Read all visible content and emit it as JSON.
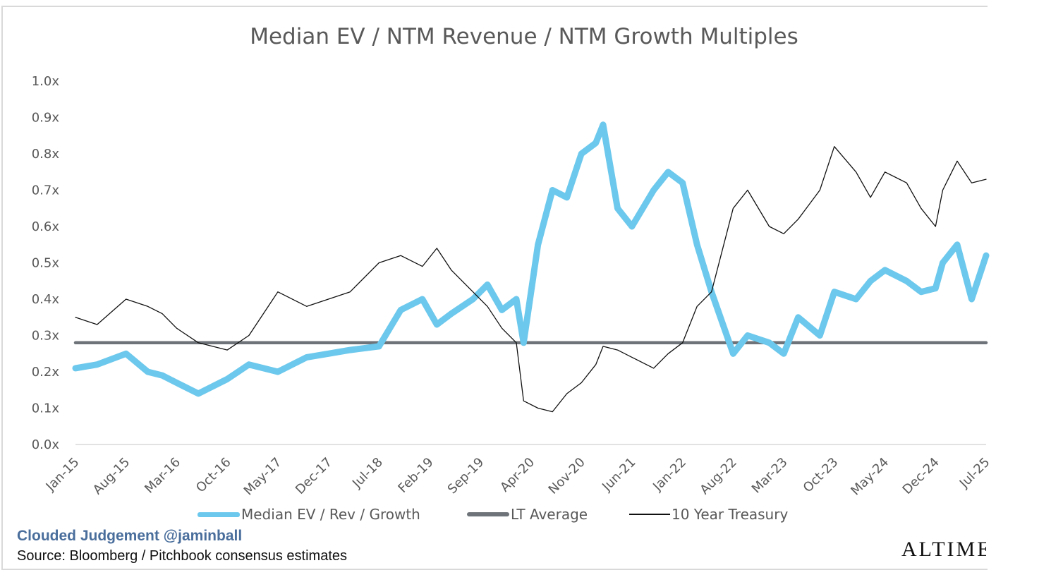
{
  "chart_data": {
    "type": "line",
    "title": "Median EV / NTM Revenue / NTM Growth Multiples",
    "xlabel": "",
    "ylabel": "",
    "ylim": [
      0,
      1.0
    ],
    "y_ticks": [
      "0.0x",
      "0.1x",
      "0.2x",
      "0.3x",
      "0.4x",
      "0.5x",
      "0.6x",
      "0.7x",
      "0.8x",
      "0.9x",
      "1.0x"
    ],
    "x_ticks": [
      "Jan-15",
      "Aug-15",
      "Mar-16",
      "Oct-16",
      "May-17",
      "Dec-17",
      "Jul-18",
      "Feb-19",
      "Sep-19",
      "Apr-20",
      "Nov-20",
      "Jun-21",
      "Jan-22",
      "Aug-22",
      "Mar-23",
      "Oct-23",
      "May-24",
      "Dec-24",
      "Jul-25"
    ],
    "grid": false,
    "legend_position": "bottom",
    "x": [
      "2015-01",
      "2015-04",
      "2015-08",
      "2015-11",
      "2016-01",
      "2016-03",
      "2016-06",
      "2016-10",
      "2017-01",
      "2017-05",
      "2017-09",
      "2017-12",
      "2018-03",
      "2018-07",
      "2018-10",
      "2019-01",
      "2019-03",
      "2019-05",
      "2019-08",
      "2019-10",
      "2019-12",
      "2020-02",
      "2020-03",
      "2020-05",
      "2020-07",
      "2020-09",
      "2020-11",
      "2021-01",
      "2021-02",
      "2021-04",
      "2021-06",
      "2021-09",
      "2021-11",
      "2022-01",
      "2022-03",
      "2022-05",
      "2022-08",
      "2022-10",
      "2023-01",
      "2023-03",
      "2023-05",
      "2023-08",
      "2023-10",
      "2024-01",
      "2024-03",
      "2024-05",
      "2024-08",
      "2024-10",
      "2024-12",
      "2025-01",
      "2025-03",
      "2025-05",
      "2025-07"
    ],
    "series": [
      {
        "name": "Median EV / Rev / Growth",
        "color": "#6cc8ec",
        "values": [
          0.21,
          0.22,
          0.25,
          0.2,
          0.19,
          0.17,
          0.14,
          0.18,
          0.22,
          0.2,
          0.24,
          0.25,
          0.26,
          0.27,
          0.37,
          0.4,
          0.33,
          0.36,
          0.4,
          0.44,
          0.37,
          0.4,
          0.28,
          0.55,
          0.7,
          0.68,
          0.8,
          0.83,
          0.88,
          0.65,
          0.6,
          0.7,
          0.75,
          0.72,
          0.55,
          0.42,
          0.25,
          0.3,
          0.28,
          0.25,
          0.35,
          0.3,
          0.42,
          0.4,
          0.45,
          0.48,
          0.45,
          0.42,
          0.43,
          0.5,
          0.55,
          0.4,
          0.52
        ]
      },
      {
        "name": "LT Average",
        "color": "#6d7378",
        "values": [
          0.28,
          0.28,
          0.28,
          0.28,
          0.28,
          0.28,
          0.28,
          0.28,
          0.28,
          0.28,
          0.28,
          0.28,
          0.28,
          0.28,
          0.28,
          0.28,
          0.28,
          0.28,
          0.28,
          0.28,
          0.28,
          0.28,
          0.28,
          0.28,
          0.28,
          0.28,
          0.28,
          0.28,
          0.28,
          0.28,
          0.28,
          0.28,
          0.28,
          0.28,
          0.28,
          0.28,
          0.28,
          0.28,
          0.28,
          0.28,
          0.28,
          0.28,
          0.28,
          0.28,
          0.28,
          0.28,
          0.28,
          0.28,
          0.28,
          0.28,
          0.28,
          0.28,
          0.28
        ]
      },
      {
        "name": "10 Year Treasury",
        "color": "#111111",
        "values": [
          0.35,
          0.33,
          0.4,
          0.38,
          0.36,
          0.32,
          0.28,
          0.26,
          0.3,
          0.42,
          0.38,
          0.4,
          0.42,
          0.5,
          0.52,
          0.49,
          0.54,
          0.48,
          0.42,
          0.38,
          0.32,
          0.28,
          0.12,
          0.1,
          0.09,
          0.14,
          0.17,
          0.22,
          0.27,
          0.26,
          0.24,
          0.21,
          0.25,
          0.28,
          0.38,
          0.42,
          0.65,
          0.7,
          0.6,
          0.58,
          0.62,
          0.7,
          0.82,
          0.75,
          0.68,
          0.75,
          0.72,
          0.65,
          0.6,
          0.7,
          0.78,
          0.72,
          0.73
        ]
      }
    ]
  },
  "footer": {
    "brand": "Clouded Judgement @jaminball",
    "source": "Source: Bloomberg / Pitchbook consensus estimates",
    "logo_text": "ALTIMETER"
  }
}
